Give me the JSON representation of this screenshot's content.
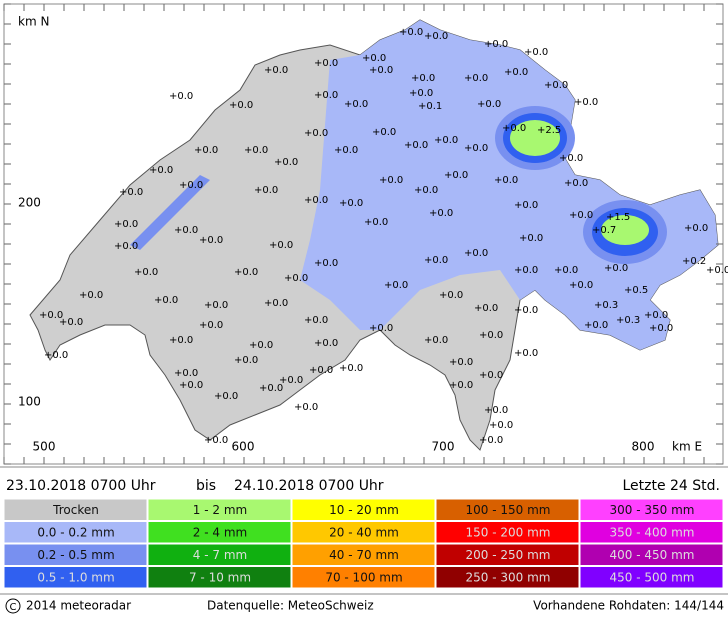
{
  "map": {
    "y_axis_title": "km N",
    "x_axis_title": "km E",
    "x_ticks": [
      "500",
      "600",
      "700",
      "800"
    ],
    "y_ticks": [
      "200",
      "100"
    ],
    "stations": [
      "+0.0",
      "+0.0",
      "+0.0",
      "+0.0",
      "+0.0",
      "+0.0",
      "+0.0",
      "+0.0",
      "+0.0",
      "+0.0",
      "+0.0",
      "+0.0",
      "+0.0",
      "+0.0",
      "+0.0",
      "+0.1",
      "+0.0",
      "+0.0",
      "+0.0",
      "+0.0",
      "+0.0",
      "+2.5",
      "+0.0",
      "+0.0",
      "+0.0",
      "+0.0",
      "+0.0",
      "+0.0",
      "+0.0",
      "+0.0",
      "+0.0",
      "+0.0",
      "+0.0",
      "+0.0",
      "+0.0",
      "+0.0",
      "+0.0",
      "+0.0",
      "+0.0",
      "+0.0",
      "+0.0",
      "+0.0",
      "+0.0",
      "+0.0",
      "+0.0",
      "+1.5",
      "+0.7",
      "+0.0",
      "+0.0",
      "+0.0",
      "+0.0",
      "+0.0",
      "+0.0",
      "+0.0",
      "+0.0",
      "+0.0",
      "+0.0",
      "+0.0",
      "+0.0",
      "+0.0",
      "+0.0",
      "+0.2",
      "+0.0",
      "+0.0",
      "+0.0",
      "+0.0",
      "+0.0",
      "+0.0",
      "+0.0",
      "+0.5",
      "+0.0",
      "+0.0",
      "+0.0",
      "+0.0",
      "+0.0",
      "+0.3",
      "+0.3",
      "+0.0",
      "+0.0",
      "+0.0",
      "+0.0",
      "+0.0",
      "+0.0",
      "+0.0",
      "+0.0",
      "+0.0",
      "+0.0",
      "+0.0",
      "+0.0",
      "+0.0",
      "+0.0",
      "+0.0",
      "+0.0",
      "+0.0",
      "+0.0",
      "+0.0",
      "+0.0",
      "+0.0",
      "+0.0",
      "+0.0",
      "+0.0",
      "+0.0",
      "+0.0",
      "+0.0",
      "+0.0",
      "+0.0",
      "+0.0",
      "+0.0",
      "+0.0",
      "+0.0"
    ]
  },
  "period": {
    "from": "23.10.2018 0700 Uhr",
    "joiner": "bis",
    "to": "24.10.2018 0700 Uhr",
    "window": "Letzte 24 Std."
  },
  "legend": {
    "columns": [
      [
        {
          "label": "Trocken",
          "color": "#c8c8c8"
        },
        {
          "label": "0.0 - 0.2 mm",
          "color": "#a8b8f8"
        },
        {
          "label": "0.2 - 0.5 mm",
          "color": "#7890f0"
        },
        {
          "label": "0.5 - 1.0 mm",
          "color": "#3060f0"
        }
      ],
      [
        {
          "label": "1 - 2 mm",
          "color": "#a8f870"
        },
        {
          "label": "2 - 4 mm",
          "color": "#40e020"
        },
        {
          "label": "4 - 7 mm",
          "color": "#10b010"
        },
        {
          "label": "7 - 10 mm",
          "color": "#108010"
        }
      ],
      [
        {
          "label": "10 - 20 mm",
          "color": "#ffff00"
        },
        {
          "label": "20 - 40 mm",
          "color": "#ffc800"
        },
        {
          "label": "40 - 70 mm",
          "color": "#ffa000"
        },
        {
          "label": "70 - 100 mm",
          "color": "#ff8000"
        }
      ],
      [
        {
          "label": "100 - 150 mm",
          "color": "#d86000"
        },
        {
          "label": "150 - 200 mm",
          "color": "#ff0000"
        },
        {
          "label": "200 - 250 mm",
          "color": "#c00000"
        },
        {
          "label": "250 - 300 mm",
          "color": "#900000"
        }
      ],
      [
        {
          "label": "300 - 350 mm",
          "color": "#ff40ff"
        },
        {
          "label": "350 - 400 mm",
          "color": "#e000e0"
        },
        {
          "label": "400 - 450 mm",
          "color": "#b000b0"
        },
        {
          "label": "450 - 500 mm",
          "color": "#8000ff"
        }
      ]
    ]
  },
  "footer": {
    "copyright": "2014  meteoradar",
    "source": "Datenquelle: MeteoSchweiz",
    "raw_data": "Vorhandene Rohdaten: 144/144"
  }
}
